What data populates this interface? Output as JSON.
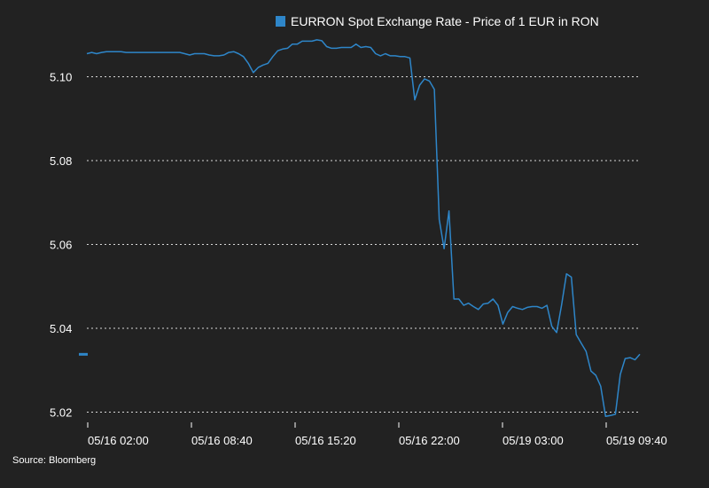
{
  "chart_data": {
    "type": "line",
    "title": "",
    "xlabel": "",
    "ylabel": "",
    "legend": {
      "position": "top-right"
    },
    "grid": {
      "horizontal": true,
      "style": "dotted"
    },
    "ylim": [
      5.018,
      5.109
    ],
    "y_ticks": [
      5.02,
      5.04,
      5.06,
      5.08,
      5.1
    ],
    "y_tick_labels": [
      "5.02",
      "5.04",
      "5.06",
      "5.08",
      "5.10"
    ],
    "x_tick_labels": [
      "05/16 02:00",
      "05/16 08:40",
      "05/16 15:20",
      "05/16 22:00",
      "05/19 03:00",
      "05/19 09:40"
    ],
    "series": [
      {
        "name": "EURRON Spot Exchange Rate - Price of 1 EUR in RON",
        "color": "#2e86c9",
        "values": [
          5.1055,
          5.1058,
          5.1055,
          5.1058,
          5.106,
          5.106,
          5.106,
          5.106,
          5.1058,
          5.1058,
          5.1058,
          5.1058,
          5.1058,
          5.1058,
          5.1058,
          5.1058,
          5.1058,
          5.1058,
          5.1058,
          5.1058,
          5.1055,
          5.1052,
          5.1055,
          5.1055,
          5.1055,
          5.1052,
          5.105,
          5.105,
          5.1052,
          5.1058,
          5.106,
          5.1055,
          5.1048,
          5.1032,
          5.101,
          5.1022,
          5.1028,
          5.1032,
          5.1048,
          5.1062,
          5.1066,
          5.1068,
          5.1078,
          5.1078,
          5.1085,
          5.1085,
          5.1085,
          5.1088,
          5.1086,
          5.1072,
          5.1068,
          5.1068,
          5.107,
          5.107,
          5.107,
          5.1078,
          5.107,
          5.1072,
          5.107,
          5.1055,
          5.105,
          5.1055,
          5.105,
          5.105,
          5.1048,
          5.1048,
          5.1045,
          5.0945,
          5.098,
          5.0995,
          5.099,
          5.097,
          5.066,
          5.059,
          5.068,
          5.047,
          5.047,
          5.0455,
          5.046,
          5.0452,
          5.0445,
          5.0458,
          5.046,
          5.047,
          5.0455,
          5.041,
          5.0438,
          5.0452,
          5.0448,
          5.0445,
          5.045,
          5.0452,
          5.0452,
          5.0448,
          5.0455,
          5.0405,
          5.039,
          5.0455,
          5.053,
          5.0522,
          5.0385,
          5.0365,
          5.0345,
          5.0298,
          5.0288,
          5.0262,
          5.019,
          5.0192,
          5.0195,
          5.029,
          5.0328,
          5.033,
          5.0325,
          5.0338
        ]
      }
    ]
  },
  "legend_swatch_color": "#2e86c9",
  "source": "Source: Bloomberg"
}
